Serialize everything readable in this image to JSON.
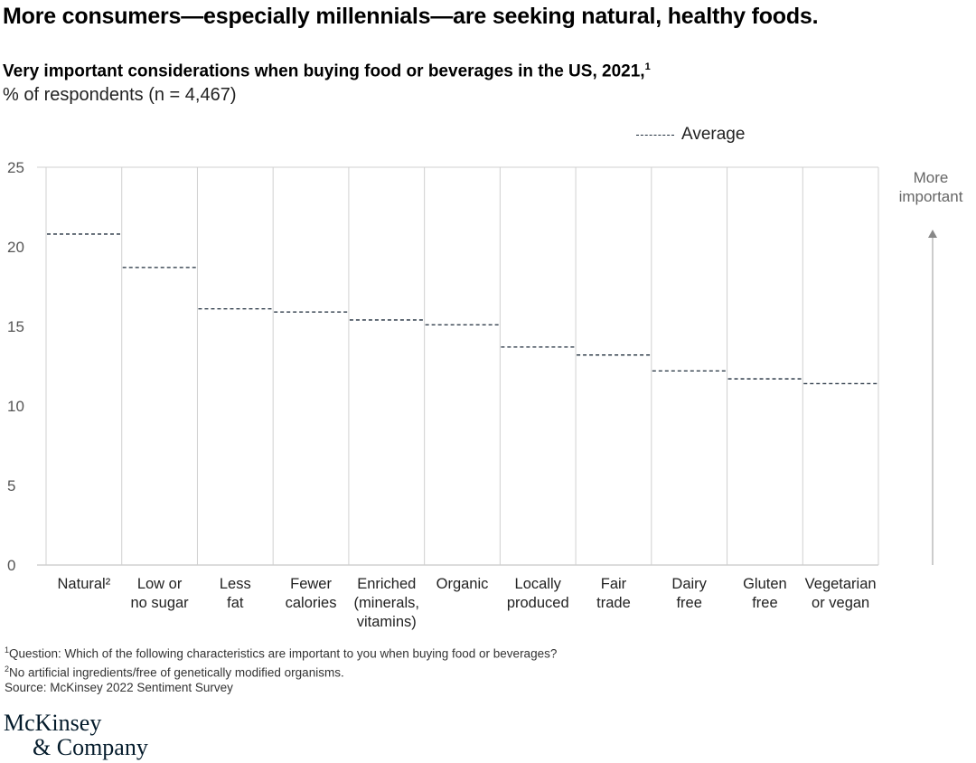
{
  "title": "More consumers—especially millennials—are seeking natural, healthy foods.",
  "subtitle": "Very important considerations when buying food or beverages in the US, 2021,",
  "subtitle_note": "1",
  "unit_label": "% of respondents (n = 4,467)",
  "legend_label": "Average",
  "arrow_label": "More important",
  "footnotes": [
    {
      "mark": "1",
      "text": "Question: Which of the following characteristics are important to you when buying food or beverages?"
    },
    {
      "mark": "2",
      "text": "No artificial ingredients/free of genetically modified organisms."
    },
    {
      "mark": "",
      "text": " Source: McKinsey 2022 Sentiment Survey"
    }
  ],
  "logo": {
    "line1": "McKinsey",
    "line2": "& Company"
  },
  "colors": {
    "average_line": "#1d2b3a",
    "grid": "#d0d0d0",
    "arrow": "#888888"
  },
  "chart_data": {
    "type": "line",
    "style": "step averages per category (dashed)",
    "categories": [
      [
        "Natural²"
      ],
      [
        "Low or",
        "no sugar"
      ],
      [
        "Less",
        "fat"
      ],
      [
        "Fewer",
        "calories"
      ],
      [
        "Enriched",
        "(minerals,",
        "vitamins)"
      ],
      [
        "Organic"
      ],
      [
        "Locally",
        "produced"
      ],
      [
        "Fair",
        "trade"
      ],
      [
        "Dairy",
        "free"
      ],
      [
        "Gluten",
        "free"
      ],
      [
        "Vegetarian",
        "or vegan"
      ]
    ],
    "series": [
      {
        "name": "Average",
        "values": [
          20.8,
          18.7,
          16.1,
          15.9,
          15.4,
          15.1,
          13.7,
          13.2,
          12.2,
          11.7,
          11.4
        ]
      }
    ],
    "ylim": [
      0,
      25
    ],
    "yticks": [
      0,
      5,
      10,
      15,
      20,
      25
    ],
    "grid": "vertical",
    "legend": "top-right"
  }
}
